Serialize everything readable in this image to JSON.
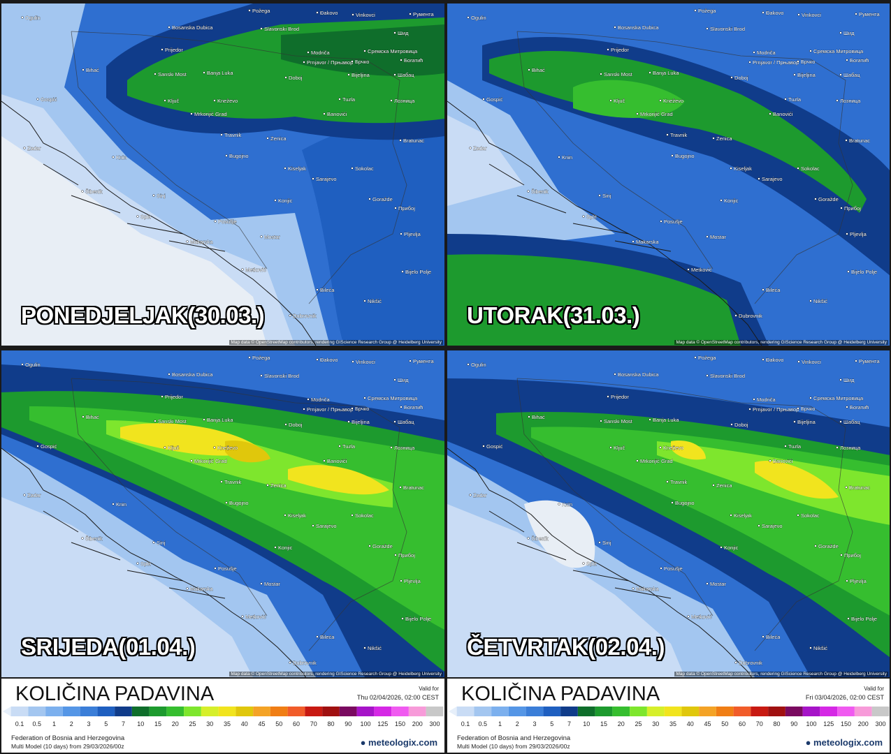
{
  "panels": [
    {
      "day_label": "PONEDJELJAK(30.03.)"
    },
    {
      "day_label": "UTORAK(31.03.)"
    },
    {
      "day_label": "SRIJEDA(01.04.)"
    },
    {
      "day_label": "ČETVRTAK(02.04.)"
    }
  ],
  "cities": [
    "Ogulin",
    "Požega",
    "Đakovo",
    "Vinkovci",
    "Румента",
    "Bosanska Dubica",
    "Slavonski Brod",
    "Шид",
    "Prijedor",
    "Modriča",
    "Сремска Митровица",
    "Bihać",
    "Sanski Most",
    "Banja Luka",
    "Prnjavor / Прњавор",
    "Брчко",
    "Богатић",
    "Doboj",
    "Bijeljina",
    "Шабац",
    "Gospić",
    "Ključ",
    "Kneževo",
    "Tuzla",
    "Лозница",
    "Mrkonjić Grad",
    "Banovići",
    "Travnik",
    "Zenica",
    "Bratunac",
    "Zadar",
    "Knin",
    "Bugojno",
    "Kiseljak",
    "Sokolac",
    "Sarajevo",
    "Šibenik",
    "Sinj",
    "Goražde",
    "Konjic",
    "Прибој",
    "Split",
    "Posušje",
    "Pljevlja",
    "Makarska",
    "Mostar",
    "Metković",
    "Bijelo Polje",
    "Bileća",
    "Nikšić",
    "Dubrovnik"
  ],
  "attribution": "Map data © OpenStreetMap contributors, rendering GIScience Research Group @ Heidelberg University",
  "footers": [
    {
      "title": "KOLIČINA PADAVINA",
      "valid_label": "Valid for",
      "valid_time": "Thu 02/04/2026, 02:00 CEST",
      "region": "Federation of Bosnia and Herzegovina",
      "model": "Multi Model (10 days) from 29/03/2026/00z",
      "brand": "meteologix.com"
    },
    {
      "title": "KOLIČINA PADAVINA",
      "valid_label": "Valid for",
      "valid_time": "Fri 03/04/2026, 02:00 CEST",
      "region": "Federation of Bosnia and Herzegovina",
      "model": "Multi Model (10 days) from 29/03/2026/00z",
      "brand": "meteologix.com"
    }
  ],
  "legend": {
    "values": [
      0.1,
      0.5,
      1,
      2,
      3,
      5,
      7,
      10,
      15,
      20,
      25,
      30,
      35,
      40,
      45,
      50,
      60,
      70,
      80,
      90,
      100,
      125,
      150,
      200,
      300
    ],
    "colors": [
      "#c9dcf5",
      "#a3c6f0",
      "#7cb0ee",
      "#5596e6",
      "#3b7ed8",
      "#1f5fc0",
      "#103c8a",
      "#0f6e2b",
      "#1d9a2e",
      "#36be2f",
      "#7ee62d",
      "#d6ef2b",
      "#f1e41e",
      "#e0c70c",
      "#f4a326",
      "#f07e15",
      "#f15c2a",
      "#c81a12",
      "#a01010",
      "#7a0a60",
      "#a614c8",
      "#d528e5",
      "#f05af0",
      "#f79bd9",
      "#c8c8c8"
    ]
  }
}
